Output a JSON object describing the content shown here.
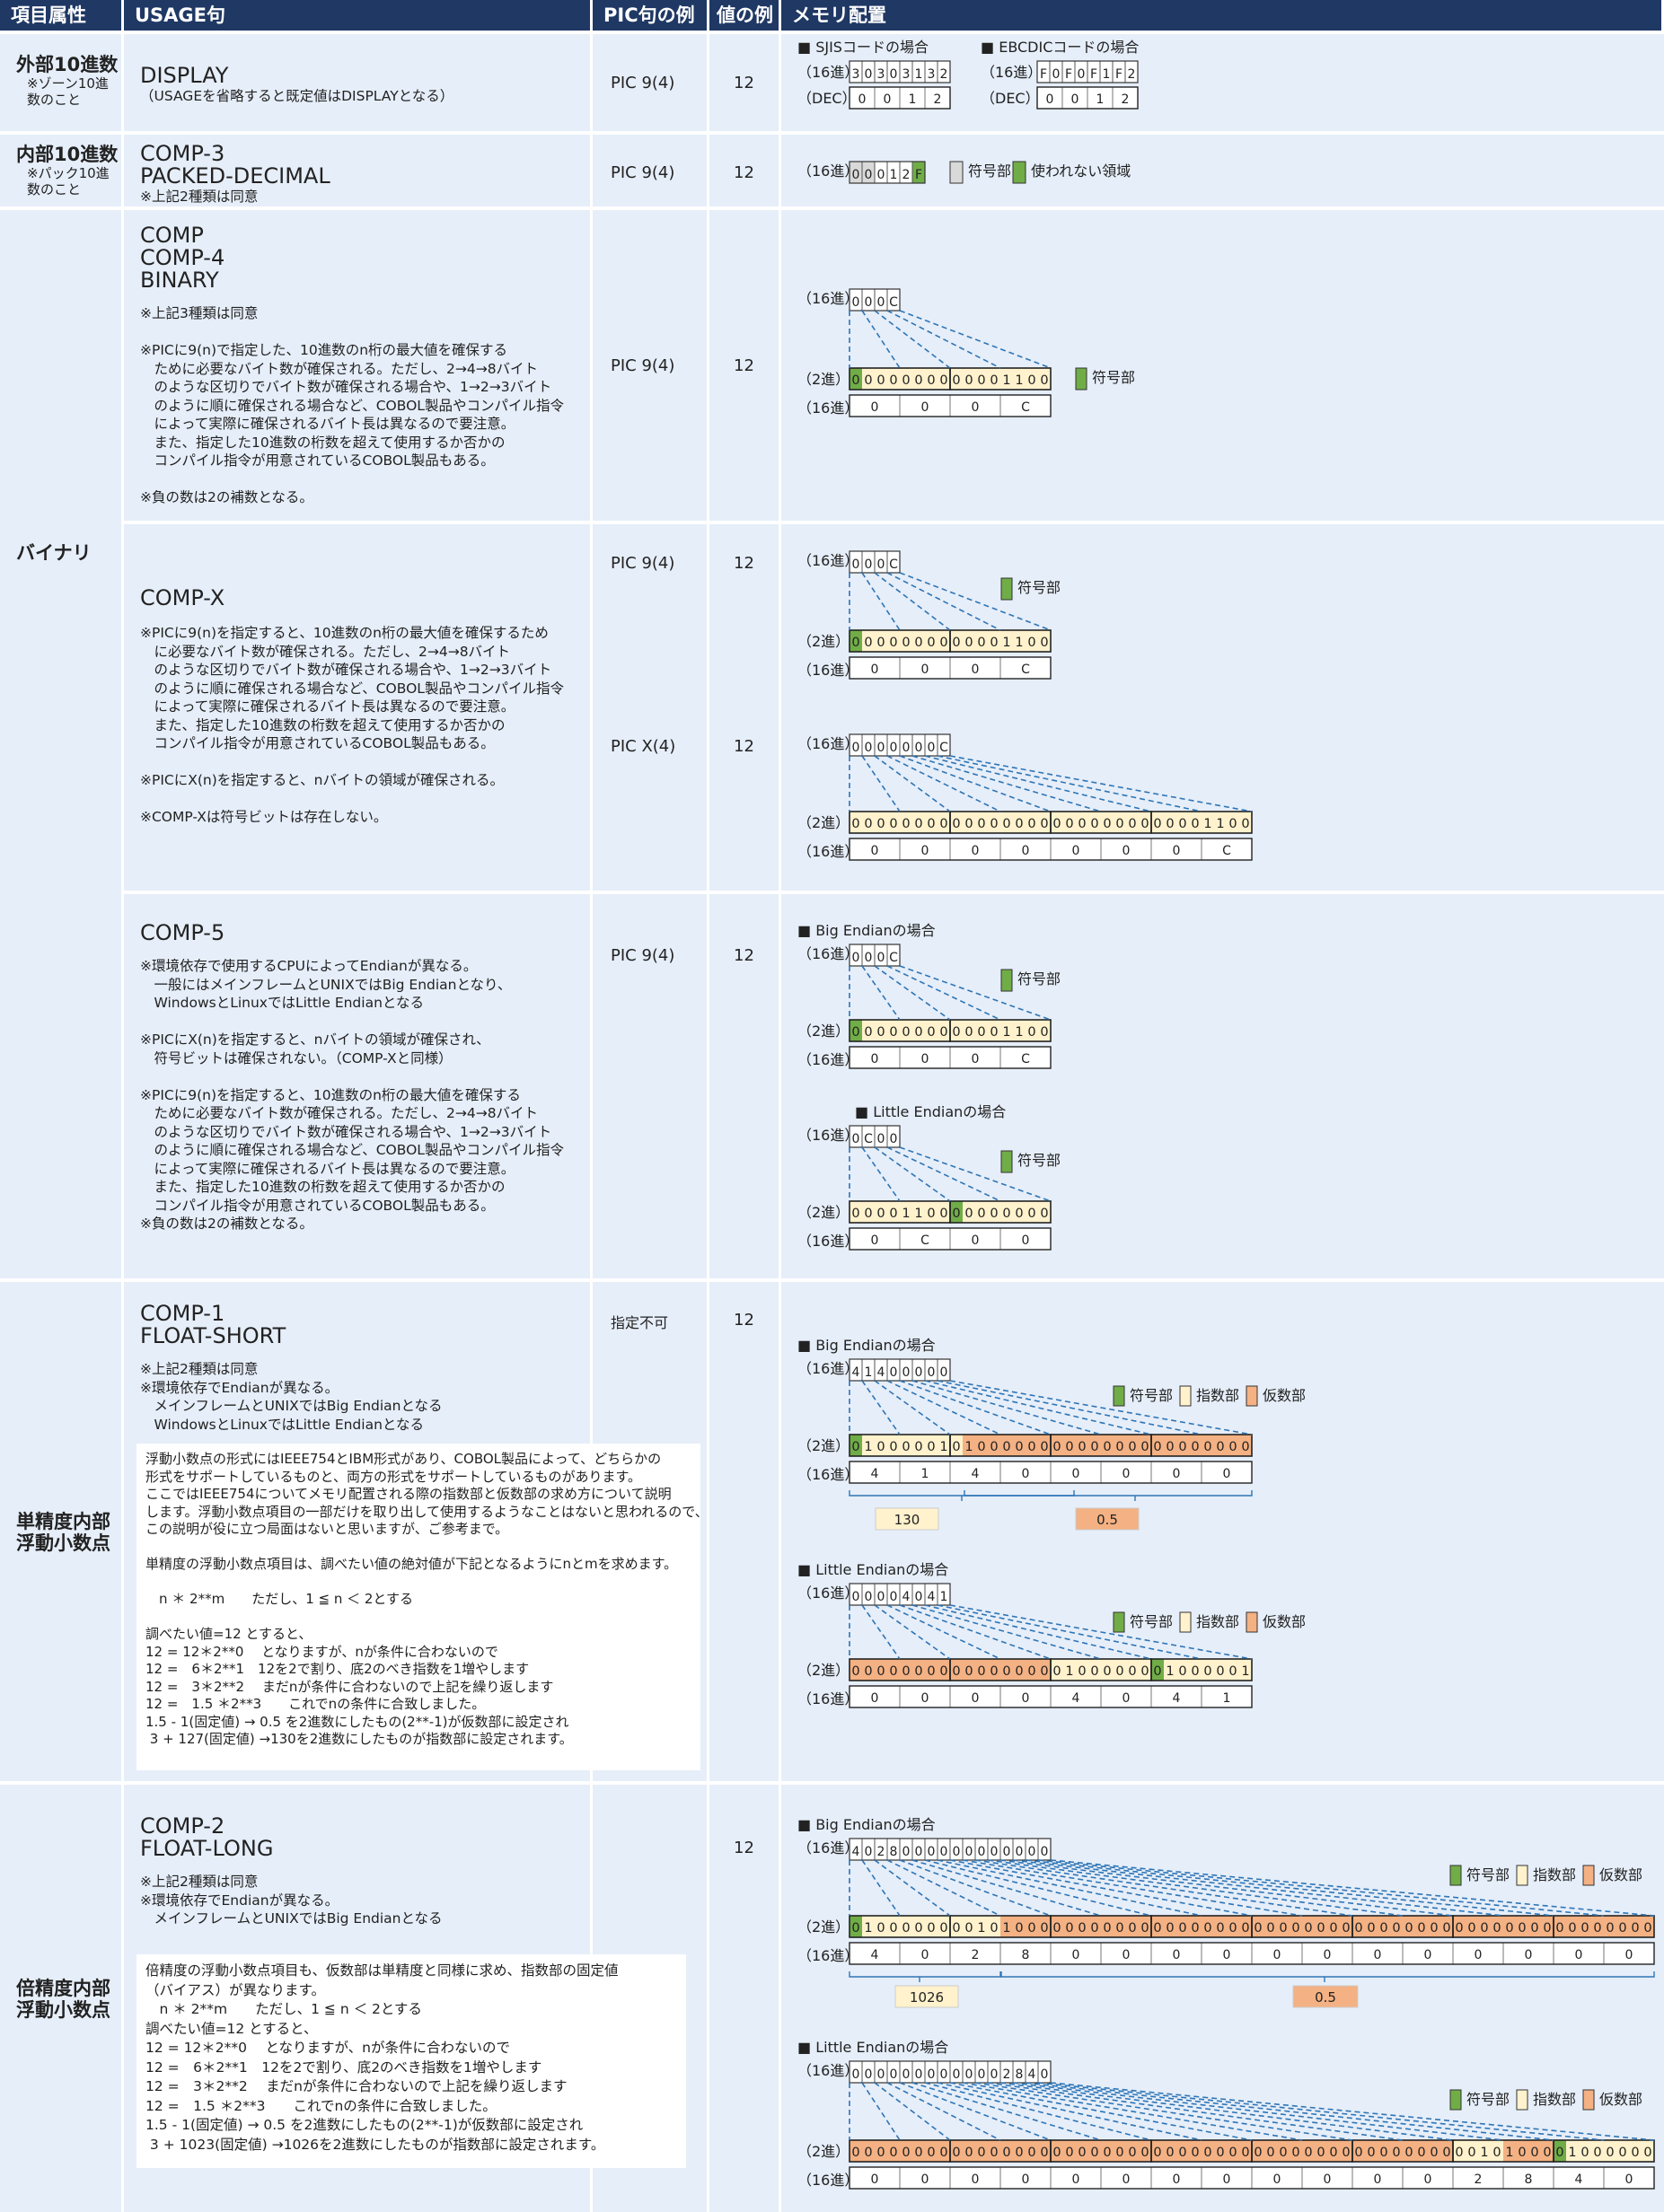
{
  "header": {
    "col_attr": "項目属性",
    "col_usage": "USAGE句",
    "col_pic": "PIC句の例",
    "col_value": "値の例",
    "col_memory": "メモリ配置"
  },
  "rows": {
    "display": {
      "attr": "外部10進数",
      "attr_note": "※ゾーン10進\n数のこと",
      "usage": "DISPLAY",
      "usage_note": "（USAGEを省略すると既定値はDISPLAYとなる）",
      "pic": "PIC 9(4)",
      "value": "12",
      "sjis_title": "■ SJISコードの場合",
      "ebcdic_title": "■ EBCDICコードの場合",
      "sjis_hex_label": "（16進）",
      "sjis_dec_label": "（DEC）",
      "ebcdic_hex_label": "（16進）",
      "ebcdic_dec_label": "（DEC）",
      "sjis_hex": [
        "3",
        "0",
        "3",
        "0",
        "3",
        "1",
        "3",
        "2"
      ],
      "sjis_dec": [
        "0",
        "0",
        "1",
        "2"
      ],
      "ebcdic_hex": [
        "F",
        "0",
        "F",
        "0",
        "F",
        "1",
        "F",
        "2"
      ],
      "ebcdic_dec": [
        "0",
        "0",
        "1",
        "2"
      ]
    },
    "comp3": {
      "attr": "内部10進数",
      "attr_note": "※パック10進\n数のこと",
      "usage": "COMP-3\nPACKED-DECIMAL",
      "usage_note": "※上記2種類は同意",
      "pic": "PIC 9(4)",
      "value": "12",
      "hex_label": "（16進）",
      "hex": [
        "0",
        "0",
        "0",
        "1",
        "2",
        "F"
      ],
      "legend_gray": "符号部",
      "legend_green": "使われない領域"
    },
    "binary": {
      "attr": "バイナリ",
      "comp": {
        "usage": "COMP\nCOMP-4\nBINARY",
        "note": "※上記3種類は同意\n\n※PICに9(n)で指定した、10進数のn桁の最大値を確保する\n　ために必要なバイト数が確保される。ただし、2→4→8バイト\n　のような区切りでバイト数が確保される場合や、1→2→3バイト\n　のように順に確保される場合など、COBOL製品やコンパイル指令\n　によって実際に確保されるバイト長は異なるので要注意。\n　また、指定した10進数の桁数を超えて使用するか否かの\n　コンパイル指令が用意されているCOBOL製品もある。\n\n※負の数は2の補数となる。",
        "pic": "PIC 9(4)",
        "value": "12",
        "hex_label": "（16進）",
        "bin_label": "（2進）",
        "hex2_label": "（16進）",
        "hex": [
          "0",
          "0",
          "0",
          "C"
        ],
        "bin": "0000000000001100",
        "nibbles": [
          "0",
          "0",
          "0",
          "C"
        ],
        "legend_sign": "符号部"
      },
      "compx": {
        "usage": "COMP-X",
        "note": "※PICに9(n)を指定すると、10進数のn桁の最大値を確保するため\n　に必要なバイト数が確保される。ただし、2→4→8バイト\n　のような区切りでバイト数が確保される場合や、1→2→3バイト\n　のように順に確保される場合など、COBOL製品やコンパイル指令\n　によって実際に確保されるバイト長は異なるので要注意。\n　また、指定した10進数の桁数を超えて使用するか否かの\n　コンパイル指令が用意されているCOBOL製品もある。\n\n※PICにX(n)を指定すると、nバイトの領域が確保される。\n\n※COMP-Xは符号ビットは存在しない。",
        "pic1": "PIC 9(4)",
        "value1": "12",
        "pic2": "PIC X(4)",
        "value2": "12",
        "hex_label": "（16進）",
        "bin_label": "（2進）",
        "hex2_label": "（16進）",
        "hex1": [
          "0",
          "0",
          "0",
          "C"
        ],
        "bin1": "0000000000001100",
        "nibbles1": [
          "0",
          "0",
          "0",
          "C"
        ],
        "hex3": [
          "0",
          "0",
          "0",
          "0",
          "0",
          "0",
          "0",
          "C"
        ],
        "bin3": "00000000000000000000000000001100",
        "nibbles3": [
          "0",
          "0",
          "0",
          "0",
          "0",
          "0",
          "0",
          "C"
        ],
        "legend_sign": "符号部"
      },
      "comp5": {
        "usage": "COMP-5",
        "note": "※環境依存で使用するCPUによってEndianが異なる。\n　一般にはメインフレームとUNIXではBig Endianとなり、\n　WindowsとLinuxではLittle Endianとなる\n\n※PICにX(n)を指定すると、nバイトの領域が確保され、\n　符号ビットは確保されない。（COMP-Xと同様）\n\n※PICに9(n)を指定すると、10進数のn桁の最大値を確保する\n　ために必要なバイト数が確保される。ただし、2→4→8バイト\n　のような区切りでバイト数が確保される場合や、1→2→3バイト\n　のように順に確保される場合など、COBOL製品やコンパイル指令\n　によって実際に確保されるバイト長は異なるので要注意。\n　また、指定した10進数の桁数を超えて使用するか否かの\n　コンパイル指令が用意されているCOBOL製品もある。\n※負の数は2の補数となる。",
        "pic": "PIC 9(4)",
        "value": "12",
        "big_title": "■ Big Endianの場合",
        "little_title": "■ Little Endianの場合",
        "hex_label": "（16進）",
        "bin_label": "（2進）",
        "hex2_label": "（16進）",
        "big_hex": [
          "0",
          "0",
          "0",
          "C"
        ],
        "big_bin": "0000000000001100",
        "big_nibbles": [
          "0",
          "0",
          "0",
          "C"
        ],
        "little_hex": [
          "0",
          "C",
          "0",
          "0"
        ],
        "little_bin": "0000110000000000",
        "little_nibbles": [
          "0",
          "C",
          "0",
          "0"
        ],
        "legend_sign": "符号部"
      }
    },
    "float_short": {
      "attr": "単精度内部\n浮動小数点",
      "usage": "COMP-1\nFLOAT-SHORT",
      "usage_note": "※上記2種類は同意\n※環境依存でEndianが異なる。\n　メインフレームとUNIXではBig Endianとなる\n　WindowsとLinuxではLittle Endianとなる",
      "pic": "指定不可",
      "value": "12",
      "box_text": "浮動小数点の形式にはIEEE754とIBM形式があり、COBOL製品によって、どちらかの\n形式をサポートしているものと、両方の形式をサポートしているものがあります。\nここではIEEE754についてメモリ配置される際の指数部と仮数部の求め方について説明\nします。浮動小数点項目の一部だけを取り出して使用するようなことはないと思われるので、\nこの説明が役に立つ局面はないと思いますが、ご参考まで。\n\n単精度の浮動小数点項目は、調べたい値の絶対値が下記となるようにnとmを求めます。\n\n　n ＊ 2**m　　ただし、1 ≦ n ＜ 2とする\n\n調べたい値=12 とすると、\n12 = 12＊2**0　 となりますが、nが条件に合わないので\n12 =　6＊2**1　12を2で割り、底2のべき指数を1増やします\n12 =　3＊2**2　 まだnが条件に合わないので上記を繰り返します\n12 =　1.5 ＊2**3　　これでnの条件に合致しました。\n1.5 - 1(固定値) → 0.5 を2進数にしたもの(2**-1)が仮数部に設定され\n 3 + 127(固定値) →130を2進数にしたものが指数部に設定されます。",
      "big_title": "■ Big Endianの場合",
      "little_title": "■ Little Endianの場合",
      "hex_label": "（16進）",
      "bin_label": "（2進）",
      "hex2_label": "（16進）",
      "big_hex": [
        "4",
        "1",
        "4",
        "0",
        "0",
        "0",
        "0",
        "0"
      ],
      "big_bin": "01000001010000000000000000000000",
      "big_nibbles": [
        "4",
        "1",
        "4",
        "0",
        "0",
        "0",
        "0",
        "0"
      ],
      "big_exp_value": "130",
      "big_mant_value": "0.5",
      "little_hex": [
        "0",
        "0",
        "0",
        "0",
        "4",
        "0",
        "4",
        "1"
      ],
      "little_bin": "00000000000000000100000001000001",
      "little_nibbles": [
        "0",
        "0",
        "0",
        "0",
        "4",
        "0",
        "4",
        "1"
      ],
      "legend_sign": "符号部",
      "legend_exp": "指数部",
      "legend_mant": "仮数部"
    },
    "float_long": {
      "attr": "倍精度内部\n浮動小数点",
      "usage": "COMP-2\nFLOAT-LONG",
      "usage_note": "※上記2種類は同意\n※環境依存でEndianが異なる。\n　メインフレームとUNIXではBig Endianとなる",
      "value": "12",
      "box_text": "倍精度の浮動小数点項目も、仮数部は単精度と同様に求め、指数部の固定値\n（バイアス）が異なります。\n　n ＊ 2**m　　ただし、1 ≦ n ＜ 2とする\n調べたい値=12 とすると、\n12 = 12＊2**0　 となりますが、nが条件に合わないので\n12 =　6＊2**1　12を2で割り、底2のべき指数を1増やします\n12 =　3＊2**2　 まだnが条件に合わないので上記を繰り返します\n12 =　1.5 ＊2**3　　これでnの条件に合致しました。\n1.5 - 1(固定値) → 0.5 を2進数にしたもの(2**-1)が仮数部に設定され\n 3 + 1023(固定値) →1026を2進数にしたものが指数部に設定されます。",
      "big_title": "■ Big Endianの場合",
      "little_title": "■ Little Endianの場合",
      "hex_label": "（16進）",
      "bin_label": "（2進）",
      "hex2_label": "（16進）",
      "big_hex": [
        "4",
        "0",
        "2",
        "8",
        "0",
        "0",
        "0",
        "0",
        "0",
        "0",
        "0",
        "0",
        "0",
        "0",
        "0",
        "0"
      ],
      "big_bin": "0100000000101000000000000000000000000000000000000000000000000000",
      "big_nibbles": [
        "4",
        "0",
        "2",
        "8",
        "0",
        "0",
        "0",
        "0",
        "0",
        "0",
        "0",
        "0",
        "0",
        "0",
        "0",
        "0"
      ],
      "big_exp_value": "1026",
      "big_mant_value": "0.5",
      "little_hex": [
        "0",
        "0",
        "0",
        "0",
        "0",
        "0",
        "0",
        "0",
        "0",
        "0",
        "0",
        "0",
        "2",
        "8",
        "4",
        "0"
      ],
      "little_bin": "0000000000000000000000000000000000000000000000000010100001000000",
      "little_nibbles": [
        "0",
        "0",
        "0",
        "0",
        "0",
        "0",
        "0",
        "0",
        "0",
        "0",
        "0",
        "0",
        "2",
        "8",
        "4",
        "0"
      ],
      "legend_sign": "符号部",
      "legend_exp": "指数部",
      "legend_mant": "仮数部"
    }
  },
  "colors": {
    "header_bg": "#1f3864",
    "cell_bg": "#e6eef9",
    "sign": "#70ad47",
    "exponent": "#fff2cc",
    "mantissa": "#f4b183",
    "unused": "#d9d9d9",
    "dashed": "#2e75b6"
  }
}
